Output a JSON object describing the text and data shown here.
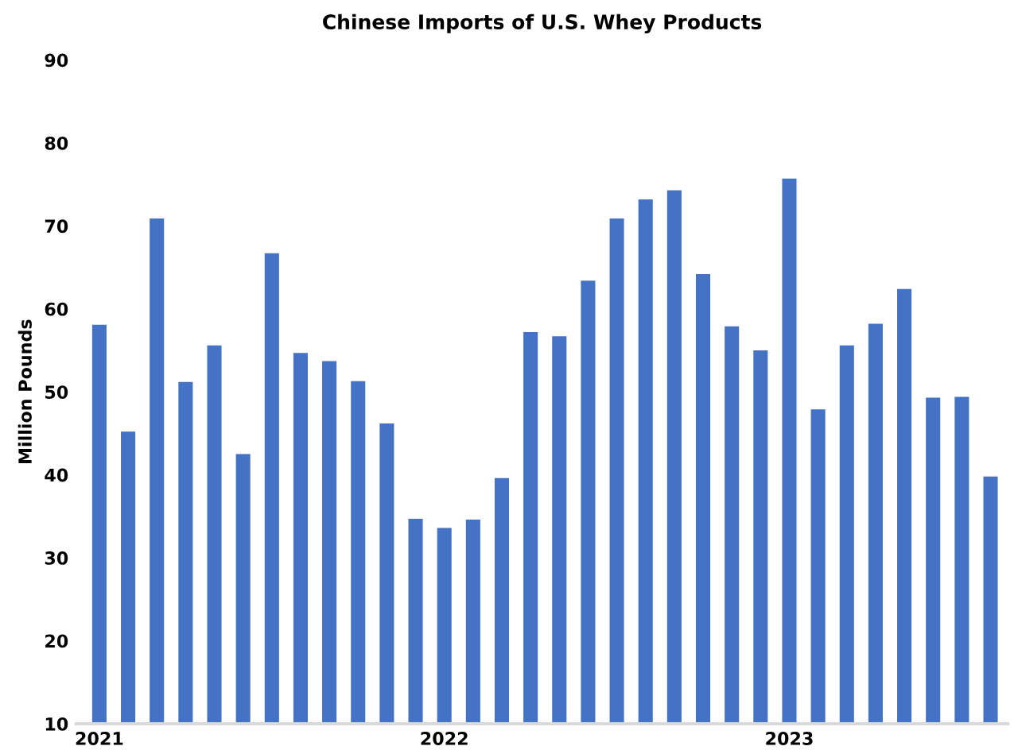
{
  "chart_data": {
    "type": "bar",
    "title": "Chinese Imports of U.S. Whey Products",
    "ylabel": "Million Pounds",
    "categories": [
      "2021",
      null,
      null,
      null,
      null,
      null,
      null,
      null,
      null,
      null,
      null,
      null,
      "2022",
      null,
      null,
      null,
      null,
      null,
      null,
      null,
      null,
      null,
      null,
      null,
      "2023",
      null,
      null,
      null,
      null,
      null,
      null,
      null
    ],
    "values": [
      58.1,
      45.2,
      70.9,
      51.2,
      55.6,
      42.5,
      66.7,
      54.7,
      53.7,
      51.3,
      46.2,
      34.7,
      33.6,
      34.6,
      39.6,
      57.2,
      56.7,
      63.4,
      70.9,
      73.2,
      74.3,
      64.2,
      57.9,
      55.0,
      75.7,
      47.9,
      55.6,
      58.2,
      62.4,
      49.3,
      49.4,
      39.8
    ],
    "color": "#4472c4",
    "ylim": [
      10,
      90
    ],
    "yticks": [
      10,
      20,
      30,
      40,
      50,
      60,
      70,
      80,
      90
    ],
    "grid": false,
    "legend": false
  }
}
